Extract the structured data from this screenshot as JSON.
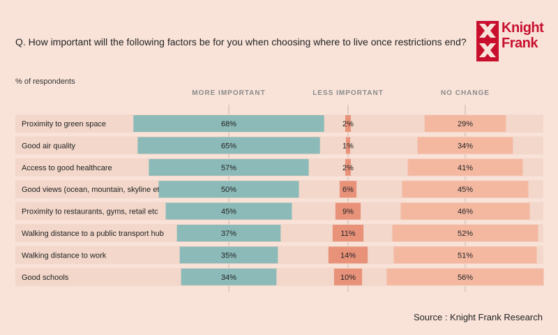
{
  "question": "Q. How important will the following factors be for you when choosing where to live once restrictions end?",
  "subtitle": "% of respondents",
  "source": "Source : Knight Frank Research",
  "logo": {
    "line1": "Knight",
    "line2": "Frank"
  },
  "colors": {
    "background": "#f9e3d9",
    "row_band": "#f2d7ca",
    "more_important": "#8bbab8",
    "less_important": "#e8927a",
    "no_change": "#f4b8a1",
    "brand_red": "#c8102e"
  },
  "chart_data": {
    "type": "bar",
    "title": "Q. How important will the following factors be for you when choosing where to live once restrictions end?",
    "ylabel": "% of respondents",
    "categories": [
      "Proximity to green space",
      "Good air quality",
      "Access to good healthcare",
      "Good views (ocean, mountain, skyline etc)",
      "Proximity to restaurants, gyms, retail etc",
      "Walking distance to a public transport hub",
      "Walking distance to work",
      "Good schools"
    ],
    "series": [
      {
        "name": "MORE IMPORTANT",
        "values": [
          68,
          65,
          57,
          50,
          45,
          37,
          35,
          34
        ],
        "labels": [
          "68%",
          "65%",
          "57%",
          "50%",
          "45%",
          "37%",
          "35%",
          "34%"
        ]
      },
      {
        "name": "LESS IMPORTANT",
        "values": [
          2,
          1,
          2,
          6,
          9,
          11,
          14,
          10
        ],
        "labels": [
          "2%",
          "1%",
          "2%",
          "6%",
          "9%",
          "11%",
          "14%",
          "10%"
        ]
      },
      {
        "name": "NO CHANGE",
        "values": [
          29,
          34,
          41,
          45,
          46,
          52,
          51,
          56
        ],
        "labels": [
          "29%",
          "34%",
          "41%",
          "45%",
          "46%",
          "52%",
          "51%",
          "56%"
        ]
      }
    ]
  }
}
